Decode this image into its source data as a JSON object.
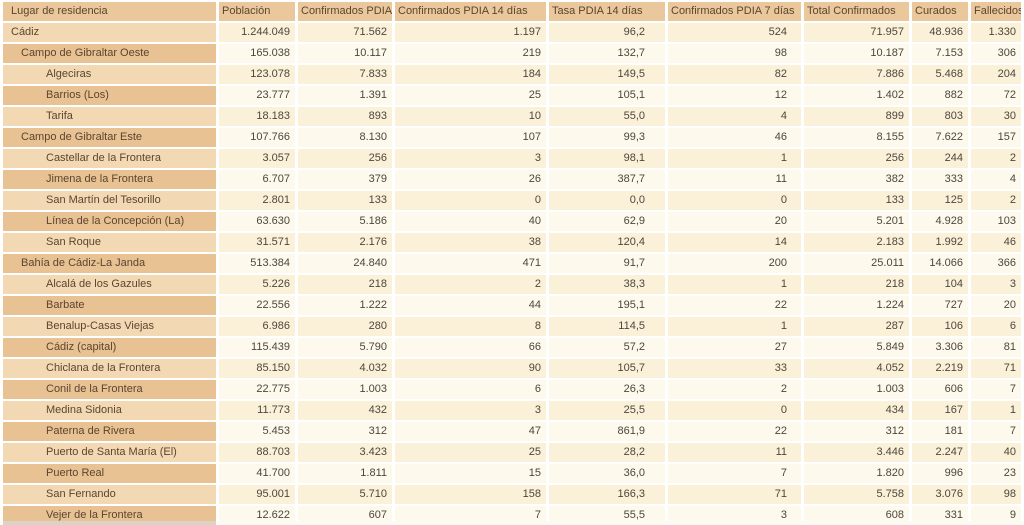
{
  "colors": {
    "header_bg": "#ebc89c",
    "label_odd_bg": "#f3d9b3",
    "label_even_bg": "#e9c294",
    "data_odd_bg": "#fbf1d9",
    "data_even_bg": "#fdf9ec",
    "separator": "#ffffff",
    "header_text": "#5a452f",
    "value_text": "#4d463c"
  },
  "table": {
    "columns": [
      "Lugar de residencia",
      "Población",
      "Confirmados PDIA",
      "Confirmados PDIA 14 días",
      "Tasa PDIA 14 días",
      "Confirmados PDIA 7 días",
      "Total Confirmados",
      "Curados",
      "Fallecidos"
    ],
    "rows": [
      {
        "name": "Cádiz",
        "level": 0,
        "values": [
          "1.244.049",
          "71.562",
          "1.197",
          "96,2",
          "524",
          "71.957",
          "48.936",
          "1.330"
        ]
      },
      {
        "name": "Campo de Gibraltar Oeste",
        "level": 1,
        "values": [
          "165.038",
          "10.117",
          "219",
          "132,7",
          "98",
          "10.187",
          "7.153",
          "306"
        ]
      },
      {
        "name": "Algeciras",
        "level": 2,
        "values": [
          "123.078",
          "7.833",
          "184",
          "149,5",
          "82",
          "7.886",
          "5.468",
          "204"
        ]
      },
      {
        "name": "Barrios (Los)",
        "level": 2,
        "values": [
          "23.777",
          "1.391",
          "25",
          "105,1",
          "12",
          "1.402",
          "882",
          "72"
        ]
      },
      {
        "name": "Tarifa",
        "level": 2,
        "values": [
          "18.183",
          "893",
          "10",
          "55,0",
          "4",
          "899",
          "803",
          "30"
        ]
      },
      {
        "name": "Campo de Gibraltar Este",
        "level": 1,
        "values": [
          "107.766",
          "8.130",
          "107",
          "99,3",
          "46",
          "8.155",
          "7.622",
          "157"
        ]
      },
      {
        "name": "Castellar de la Frontera",
        "level": 2,
        "values": [
          "3.057",
          "256",
          "3",
          "98,1",
          "1",
          "256",
          "244",
          "2"
        ]
      },
      {
        "name": "Jimena de la Frontera",
        "level": 2,
        "values": [
          "6.707",
          "379",
          "26",
          "387,7",
          "11",
          "382",
          "333",
          "4"
        ]
      },
      {
        "name": "San Martín del Tesorillo",
        "level": 2,
        "values": [
          "2.801",
          "133",
          "0",
          "0,0",
          "0",
          "133",
          "125",
          "2"
        ]
      },
      {
        "name": "Línea de la Concepción (La)",
        "level": 2,
        "values": [
          "63.630",
          "5.186",
          "40",
          "62,9",
          "20",
          "5.201",
          "4.928",
          "103"
        ]
      },
      {
        "name": "San Roque",
        "level": 2,
        "values": [
          "31.571",
          "2.176",
          "38",
          "120,4",
          "14",
          "2.183",
          "1.992",
          "46"
        ]
      },
      {
        "name": "Bahía de Cádiz-La Janda",
        "level": 1,
        "values": [
          "513.384",
          "24.840",
          "471",
          "91,7",
          "200",
          "25.011",
          "14.066",
          "366"
        ]
      },
      {
        "name": "Alcalá de los Gazules",
        "level": 2,
        "values": [
          "5.226",
          "218",
          "2",
          "38,3",
          "1",
          "218",
          "104",
          "3"
        ]
      },
      {
        "name": "Barbate",
        "level": 2,
        "values": [
          "22.556",
          "1.222",
          "44",
          "195,1",
          "22",
          "1.224",
          "727",
          "20"
        ]
      },
      {
        "name": "Benalup-Casas Viejas",
        "level": 2,
        "values": [
          "6.986",
          "280",
          "8",
          "114,5",
          "1",
          "287",
          "106",
          "6"
        ]
      },
      {
        "name": "Cádiz (capital)",
        "level": 2,
        "values": [
          "115.439",
          "5.790",
          "66",
          "57,2",
          "27",
          "5.849",
          "3.306",
          "81"
        ]
      },
      {
        "name": "Chiclana de la Frontera",
        "level": 2,
        "values": [
          "85.150",
          "4.032",
          "90",
          "105,7",
          "33",
          "4.052",
          "2.219",
          "71"
        ]
      },
      {
        "name": "Conil de la Frontera",
        "level": 2,
        "values": [
          "22.775",
          "1.003",
          "6",
          "26,3",
          "2",
          "1.003",
          "606",
          "7"
        ]
      },
      {
        "name": "Medina Sidonia",
        "level": 2,
        "values": [
          "11.773",
          "432",
          "3",
          "25,5",
          "0",
          "434",
          "167",
          "1"
        ]
      },
      {
        "name": "Paterna de Rivera",
        "level": 2,
        "values": [
          "5.453",
          "312",
          "47",
          "861,9",
          "22",
          "312",
          "181",
          "7"
        ]
      },
      {
        "name": "Puerto de Santa María (El)",
        "level": 2,
        "values": [
          "88.703",
          "3.423",
          "25",
          "28,2",
          "11",
          "3.446",
          "2.247",
          "40"
        ]
      },
      {
        "name": "Puerto Real",
        "level": 2,
        "values": [
          "41.700",
          "1.811",
          "15",
          "36,0",
          "7",
          "1.820",
          "996",
          "23"
        ]
      },
      {
        "name": "San Fernando",
        "level": 2,
        "values": [
          "95.001",
          "5.710",
          "158",
          "166,3",
          "71",
          "5.758",
          "3.076",
          "98"
        ]
      },
      {
        "name": "Vejer de la Frontera",
        "level": 2,
        "values": [
          "12.622",
          "607",
          "7",
          "55,5",
          "3",
          "608",
          "331",
          "9"
        ]
      }
    ]
  },
  "chart_data": {
    "type": "table",
    "columns": [
      "Lugar de residencia",
      "Población",
      "Confirmados PDIA",
      "Confirmados PDIA 14 días",
      "Tasa PDIA 14 días",
      "Confirmados PDIA 7 días",
      "Total Confirmados",
      "Curados",
      "Fallecidos"
    ],
    "rows": [
      {
        "name": "Cádiz",
        "values": [
          1244049,
          71562,
          1197,
          96.2,
          524,
          71957,
          48936,
          1330
        ]
      },
      {
        "name": "Campo de Gibraltar Oeste",
        "values": [
          165038,
          10117,
          219,
          132.7,
          98,
          10187,
          7153,
          306
        ]
      },
      {
        "name": "Algeciras",
        "values": [
          123078,
          7833,
          184,
          149.5,
          82,
          7886,
          5468,
          204
        ]
      },
      {
        "name": "Barrios (Los)",
        "values": [
          23777,
          1391,
          25,
          105.1,
          12,
          1402,
          882,
          72
        ]
      },
      {
        "name": "Tarifa",
        "values": [
          18183,
          893,
          10,
          55.0,
          4,
          899,
          803,
          30
        ]
      },
      {
        "name": "Campo de Gibraltar Este",
        "values": [
          107766,
          8130,
          107,
          99.3,
          46,
          8155,
          7622,
          157
        ]
      },
      {
        "name": "Castellar de la Frontera",
        "values": [
          3057,
          256,
          3,
          98.1,
          1,
          256,
          244,
          2
        ]
      },
      {
        "name": "Jimena de la Frontera",
        "values": [
          6707,
          379,
          26,
          387.7,
          11,
          382,
          333,
          4
        ]
      },
      {
        "name": "San Martín del Tesorillo",
        "values": [
          2801,
          133,
          0,
          0.0,
          0,
          133,
          125,
          2
        ]
      },
      {
        "name": "Línea de la Concepción (La)",
        "values": [
          63630,
          5186,
          40,
          62.9,
          20,
          5201,
          4928,
          103
        ]
      },
      {
        "name": "San Roque",
        "values": [
          31571,
          2176,
          38,
          120.4,
          14,
          2183,
          1992,
          46
        ]
      },
      {
        "name": "Bahía de Cádiz-La Janda",
        "values": [
          513384,
          24840,
          471,
          91.7,
          200,
          25011,
          14066,
          366
        ]
      },
      {
        "name": "Alcalá de los Gazules",
        "values": [
          5226,
          218,
          2,
          38.3,
          1,
          218,
          104,
          3
        ]
      },
      {
        "name": "Barbate",
        "values": [
          22556,
          1222,
          44,
          195.1,
          22,
          1224,
          727,
          20
        ]
      },
      {
        "name": "Benalup-Casas Viejas",
        "values": [
          6986,
          280,
          8,
          114.5,
          1,
          287,
          106,
          6
        ]
      },
      {
        "name": "Cádiz (capital)",
        "values": [
          115439,
          5790,
          66,
          57.2,
          27,
          5849,
          3306,
          81
        ]
      },
      {
        "name": "Chiclana de la Frontera",
        "values": [
          85150,
          4032,
          90,
          105.7,
          33,
          4052,
          2219,
          71
        ]
      },
      {
        "name": "Conil de la Frontera",
        "values": [
          22775,
          1003,
          6,
          26.3,
          2,
          1003,
          606,
          7
        ]
      },
      {
        "name": "Medina Sidonia",
        "values": [
          11773,
          432,
          3,
          25.5,
          0,
          434,
          167,
          1
        ]
      },
      {
        "name": "Paterna de Rivera",
        "values": [
          5453,
          312,
          47,
          861.9,
          22,
          312,
          181,
          7
        ]
      },
      {
        "name": "Puerto de Santa María (El)",
        "values": [
          88703,
          3423,
          25,
          28.2,
          11,
          3446,
          2247,
          40
        ]
      },
      {
        "name": "Puerto Real",
        "values": [
          41700,
          1811,
          15,
          36.0,
          7,
          1820,
          996,
          23
        ]
      },
      {
        "name": "San Fernando",
        "values": [
          95001,
          5710,
          158,
          166.3,
          71,
          5758,
          3076,
          98
        ]
      },
      {
        "name": "Vejer de la Frontera",
        "values": [
          12622,
          607,
          7,
          55.5,
          3,
          608,
          331,
          9
        ]
      }
    ]
  }
}
